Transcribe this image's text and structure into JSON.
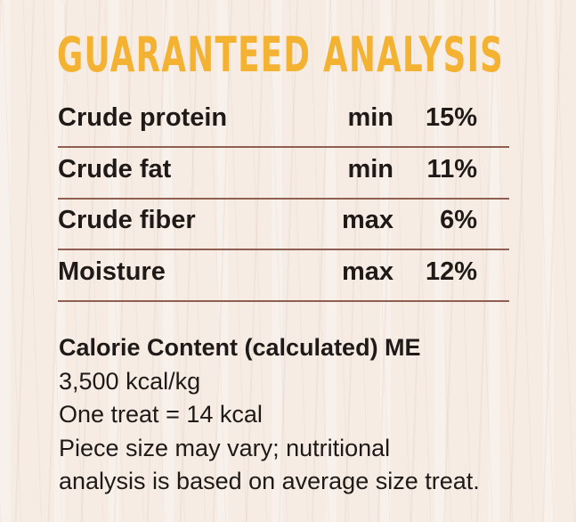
{
  "header": {
    "title": "GUARANTEED ANALYSIS"
  },
  "table": {
    "rows": [
      [
        "Crude protein",
        "min",
        "15%"
      ],
      [
        "Crude fat",
        "min",
        "11%"
      ],
      [
        "Crude fiber",
        "max",
        "6%"
      ],
      [
        "Moisture",
        "max",
        "12%"
      ]
    ]
  },
  "calorie": {
    "heading": "Calorie Content (calculated) ME",
    "lines": [
      "3,500 kcal/kg",
      "One treat = 14 kcal",
      "Piece size may vary; nutritional",
      "analysis is based on average size treat."
    ]
  }
}
